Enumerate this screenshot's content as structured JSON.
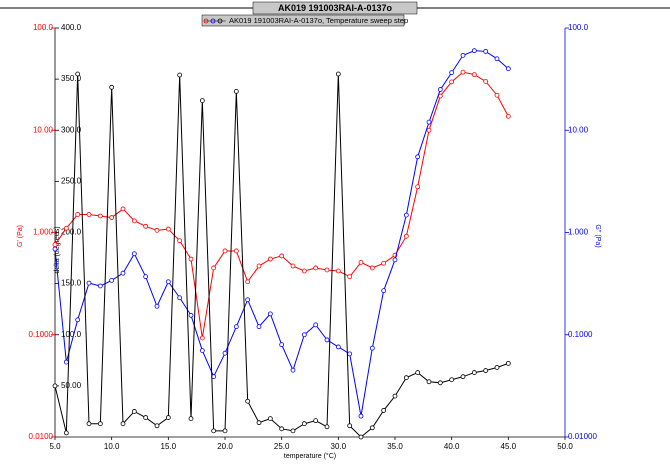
{
  "chart_data": {
    "type": "line",
    "title": "AK019 191003RAI-A-0137o",
    "legend_label": "AK019 191003RAI-A-0137o, Temperature sweep step",
    "xlabel": "temperature (°C)",
    "ylabel": "G' (Pa)",
    "y2label": "G'' (Pa)",
    "y3label": "delta (degrees)",
    "yscale": "log",
    "y2scale": "log",
    "y3scale": "linear",
    "xlim": [
      5,
      50
    ],
    "xticks": [
      {
        "value": 5,
        "label": "5.0"
      },
      {
        "value": 10,
        "label": "10.0"
      },
      {
        "value": 15,
        "label": "15.0"
      },
      {
        "value": 20,
        "label": "20.0"
      },
      {
        "value": 25,
        "label": "25.0"
      },
      {
        "value": 30,
        "label": "30.0"
      },
      {
        "value": 35,
        "label": "35.0"
      },
      {
        "value": 40,
        "label": "40.0"
      },
      {
        "value": 45,
        "label": "45.0"
      },
      {
        "value": 50,
        "label": "50.0"
      }
    ],
    "ylim": [
      0.01,
      100
    ],
    "yticks": [
      {
        "value": 0.01,
        "label": "0.0100"
      },
      {
        "value": 0.1,
        "label": "0.1000"
      },
      {
        "value": 1,
        "label": "1.000"
      },
      {
        "value": 10,
        "label": "10.00"
      },
      {
        "value": 100,
        "label": "100.0"
      }
    ],
    "y2lim": [
      0.01,
      100
    ],
    "y2ticks": [
      {
        "value": 0.01,
        "label": "0.01000"
      },
      {
        "value": 0.1,
        "label": "0.1000"
      },
      {
        "value": 1,
        "label": "1.000"
      },
      {
        "value": 10,
        "label": "10.00"
      },
      {
        "value": 100,
        "label": "100.0"
      }
    ],
    "y3lim": [
      0,
      400
    ],
    "y3ticks": [
      {
        "value": 50,
        "label": "50.00"
      },
      {
        "value": 100,
        "label": "100.0"
      },
      {
        "value": 150,
        "label": "150.0"
      },
      {
        "value": 200,
        "label": "200.0"
      },
      {
        "value": 250,
        "label": "250.0"
      },
      {
        "value": 300,
        "label": "300.0"
      },
      {
        "value": 350,
        "label": "350.0"
      },
      {
        "value": 400,
        "label": "400.0"
      }
    ],
    "x": [
      5,
      6,
      7,
      8,
      9,
      10,
      11,
      12,
      13,
      14,
      15,
      16,
      17,
      18,
      19,
      20,
      21,
      22,
      23,
      24,
      25,
      26,
      27,
      28,
      29,
      30,
      31,
      32,
      33,
      34,
      35,
      36,
      37,
      38,
      39,
      40,
      41,
      42,
      43,
      44,
      45
    ],
    "series": [
      {
        "color": "#ff0000",
        "axis": "y",
        "values": [
          0.76,
          1.1,
          1.5,
          1.5,
          1.45,
          1.4,
          1.7,
          1.3,
          1.15,
          1.05,
          1.08,
          0.83,
          0.55,
          0.093,
          0.45,
          0.66,
          0.66,
          0.33,
          0.47,
          0.55,
          0.59,
          0.47,
          0.42,
          0.45,
          0.43,
          0.42,
          0.37,
          0.51,
          0.45,
          0.5,
          0.6,
          0.92,
          2.8,
          10,
          21.6,
          29.7,
          37,
          35,
          30,
          22,
          13.7
        ]
      },
      {
        "color": "#0000ff",
        "axis": "y2",
        "values": [
          0.69,
          0.054,
          0.14,
          0.32,
          0.3,
          0.34,
          0.4,
          0.62,
          0.37,
          0.19,
          0.33,
          0.23,
          0.155,
          0.07,
          0.039,
          0.066,
          0.12,
          0.22,
          0.12,
          0.16,
          0.08,
          0.045,
          0.1,
          0.125,
          0.089,
          0.076,
          0.065,
          0.016,
          0.074,
          0.27,
          0.54,
          1.48,
          5.5,
          12,
          25,
          36.6,
          54,
          60,
          59,
          50,
          40
        ]
      },
      {
        "color": "#000000",
        "axis": "y3",
        "values": [
          50,
          4,
          355,
          13,
          13,
          342,
          13,
          25,
          19,
          11,
          19,
          354,
          18,
          329,
          6,
          6,
          338,
          35,
          14,
          18,
          8,
          6,
          13,
          16,
          10,
          355,
          11,
          0,
          9,
          26,
          40,
          58,
          63,
          54,
          53,
          56,
          59,
          63,
          65,
          68,
          72
        ]
      }
    ]
  }
}
